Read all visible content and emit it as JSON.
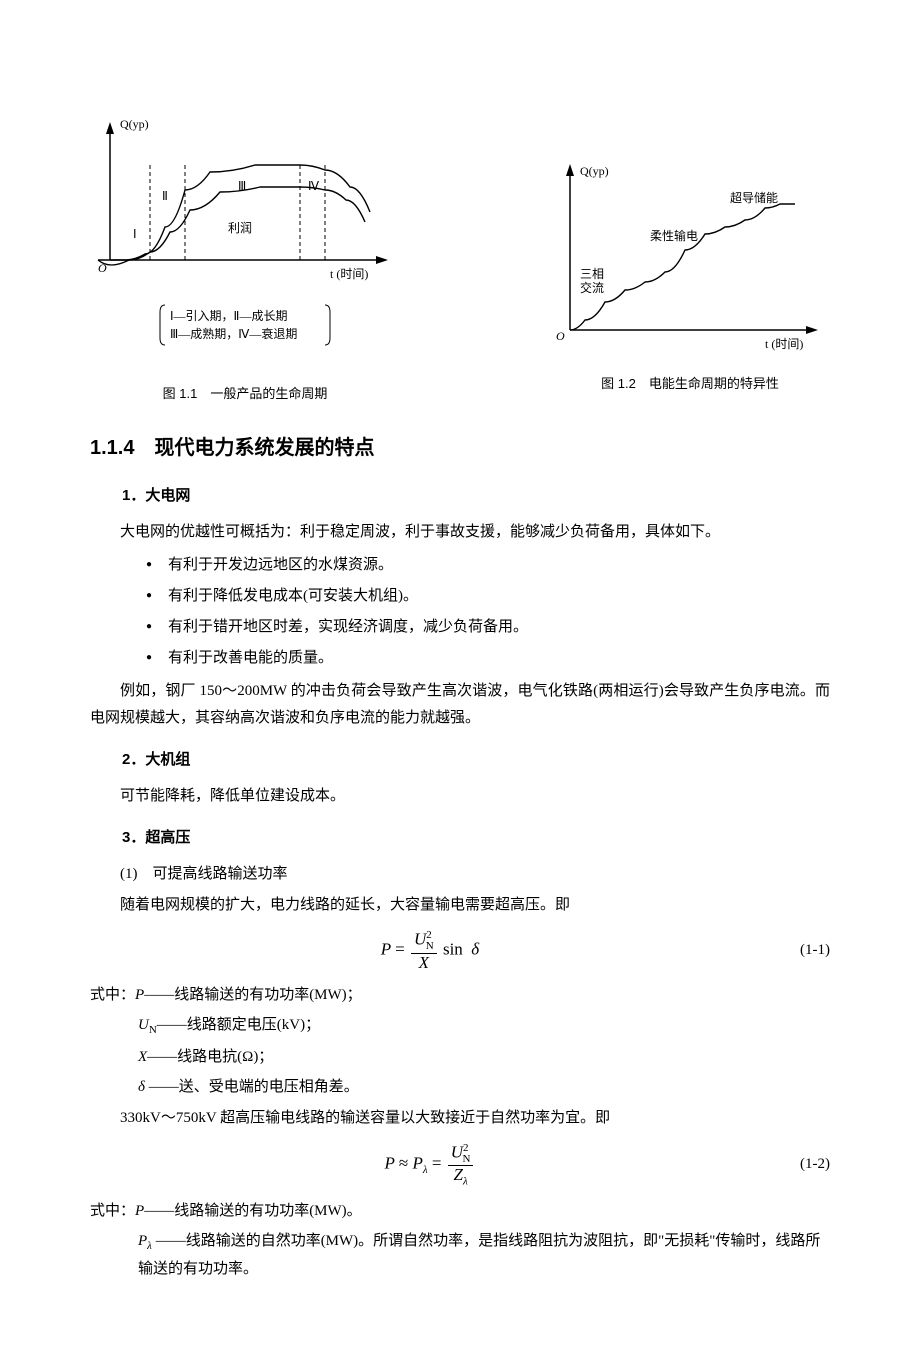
{
  "figures": {
    "fig1": {
      "caption": "图 1.1　一般产品的生命周期",
      "y_label": "Q(yp)",
      "x_label": "t (时间)",
      "origin": "O",
      "region_labels": [
        "Ⅰ",
        "Ⅱ",
        "Ⅲ",
        "Ⅳ"
      ],
      "profit_label": "利润",
      "legend_line1": "Ⅰ—引入期，Ⅱ—成长期",
      "legend_line2": "Ⅲ—成熟期，Ⅳ—衰退期",
      "colors": {
        "stroke": "#000000",
        "bg": "#ffffff"
      },
      "curve_upper": [
        [
          20,
          118
        ],
        [
          35,
          118
        ],
        [
          55,
          112
        ],
        [
          75,
          85
        ],
        [
          95,
          48
        ],
        [
          120,
          30
        ],
        [
          165,
          23
        ],
        [
          210,
          23
        ],
        [
          235,
          28
        ],
        [
          260,
          45
        ],
        [
          280,
          70
        ]
      ],
      "curve_lower": [
        [
          39,
          118
        ],
        [
          60,
          110
        ],
        [
          80,
          90
        ],
        [
          100,
          68
        ],
        [
          130,
          50
        ],
        [
          170,
          45
        ],
        [
          210,
          45
        ],
        [
          235,
          48
        ],
        [
          256,
          58
        ],
        [
          275,
          80
        ]
      ],
      "dash_x": [
        60,
        95,
        210,
        235
      ]
    },
    "fig2": {
      "caption": "图 1.2　电能生命周期的特异性",
      "y_label": "Q(yp)",
      "x_label": "t (时间)",
      "origin": "O",
      "stage_labels": [
        "三相交流",
        "柔性输电",
        "超导储能"
      ],
      "colors": {
        "stroke": "#000000",
        "bg": "#ffffff"
      },
      "curve": [
        [
          20,
          148
        ],
        [
          35,
          138
        ],
        [
          55,
          120
        ],
        [
          75,
          108
        ],
        [
          95,
          100
        ],
        [
          115,
          90
        ],
        [
          135,
          68
        ],
        [
          155,
          52
        ],
        [
          175,
          45
        ],
        [
          195,
          38
        ],
        [
          215,
          26
        ],
        [
          230,
          22
        ],
        [
          245,
          22
        ]
      ]
    }
  },
  "section": {
    "number": "1.1.4",
    "title": "现代电力系统发展的特点"
  },
  "sub1": {
    "heading": "1．大电网",
    "intro": "大电网的优越性可概括为：利于稳定周波，利于事故支援，能够减少负荷备用，具体如下。",
    "bullets": [
      "有利于开发边远地区的水煤资源。",
      "有利于降低发电成本(可安装大机组)。",
      "有利于错开地区时差，实现经济调度，减少负荷备用。",
      "有利于改善电能的质量。"
    ],
    "example": "例如，钢厂 150～200MW 的冲击负荷会导致产生高次谐波，电气化铁路(两相运行)会导致产生负序电流。而电网规模越大，其容纳高次谐波和负序电流的能力就越强。"
  },
  "sub2": {
    "heading": "2．大机组",
    "text": "可节能降耗，降低单位建设成本。"
  },
  "sub3": {
    "heading": "3．超高压",
    "item1_title": "(1)　可提高线路输送功率",
    "item1_text": "随着电网规模的扩大，电力线路的延长，大容量输电需要超高压。即",
    "eq1": {
      "num": "(1-1)",
      "var_P": "P",
      "var_UN": "U",
      "UN_sub": "N",
      "UN_sup": "2",
      "var_X": "X",
      "sin": "sin",
      "delta": "δ"
    },
    "where_label": "式中：",
    "v_P": "P——线路输送的有功功率(MW)；",
    "v_UN": "——线路额定电压(kV)；",
    "v_X": "X——线路电抗(Ω)；",
    "v_delta": "——送、受电端的电压相角差。",
    "item1_post": "330kV～750kV 超高压输电线路的输送容量以大致接近于自然功率为宜。即",
    "eq2": {
      "num": "(1-2)",
      "var_P": "P",
      "approx": "≈",
      "Pl": "P",
      "Pl_sub": "λ",
      "UN": "U",
      "UN_sub": "N",
      "UN_sup": "2",
      "Zl": "Z",
      "Zl_sub": "λ"
    },
    "v2_P": "P——线路输送的有功功率(MW)。",
    "v2_Pl_pre": "P",
    "v2_Pl_sub": "λ",
    "v2_Pl": "——线路输送的自然功率(MW)。所谓自然功率，是指线路阻抗为波阻抗，即\"无损耗\"传输时，线路所输送的有功功率。"
  }
}
